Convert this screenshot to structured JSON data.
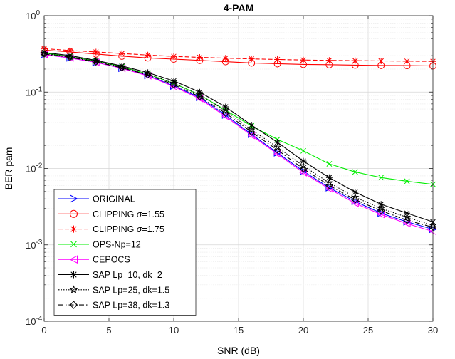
{
  "chart_data": {
    "type": "line",
    "title": "4-PAM",
    "xlabel": "SNR (dB)",
    "ylabel": "BER pam",
    "xlim": [
      0,
      30
    ],
    "ylim": [
      0.0001,
      1
    ],
    "yscale": "log",
    "grid": true,
    "legend_position": "bottom-left",
    "x_ticks": [
      "0",
      "5",
      "10",
      "15",
      "20",
      "25",
      "30"
    ],
    "y_ticks": [
      {
        "base": "10",
        "exp": "0"
      },
      {
        "base": "10",
        "exp": "-1"
      },
      {
        "base": "10",
        "exp": "-2"
      },
      {
        "base": "10",
        "exp": "-3"
      },
      {
        "base": "10",
        "exp": "-4"
      }
    ],
    "x": [
      0,
      2,
      4,
      6,
      8,
      10,
      12,
      14,
      16,
      18,
      20,
      22,
      24,
      26,
      28,
      30
    ],
    "series": [
      {
        "name": "ORIGINAL",
        "label_parts": [
          "ORIGINAL"
        ],
        "color": "#0000ff",
        "dash": "solid",
        "marker": "triangle-right",
        "values": [
          0.31,
          0.28,
          0.245,
          0.205,
          0.165,
          0.12,
          0.085,
          0.05,
          0.028,
          0.016,
          0.0092,
          0.0056,
          0.0037,
          0.0026,
          0.002,
          0.0016
        ]
      },
      {
        "name": "CLIPPING σ=1.55",
        "label_parts": [
          "CLIPPING ",
          "σ",
          "=1.55"
        ],
        "color": "#ff0000",
        "dash": "solid",
        "marker": "circle",
        "values": [
          0.355,
          0.335,
          0.315,
          0.295,
          0.28,
          0.27,
          0.26,
          0.25,
          0.24,
          0.235,
          0.23,
          0.228,
          0.225,
          0.223,
          0.222,
          0.22
        ]
      },
      {
        "name": "CLIPPING σ=1.75",
        "label_parts": [
          "CLIPPING ",
          "σ",
          "=1.75"
        ],
        "color": "#ff0000",
        "dash": "dashed",
        "marker": "asterisk",
        "values": [
          0.37,
          0.35,
          0.335,
          0.32,
          0.305,
          0.293,
          0.285,
          0.278,
          0.272,
          0.267,
          0.263,
          0.26,
          0.258,
          0.256,
          0.254,
          0.252
        ]
      },
      {
        "name": "OPS-Np=12",
        "label_parts": [
          "OPS-Np=12"
        ],
        "color": "#00ee00",
        "dash": "solid",
        "marker": "x",
        "values": [
          0.325,
          0.29,
          0.255,
          0.215,
          0.172,
          0.13,
          0.092,
          0.058,
          0.036,
          0.024,
          0.017,
          0.0115,
          0.009,
          0.0076,
          0.0068,
          0.0062
        ]
      },
      {
        "name": "CEPOCS",
        "label_parts": [
          "CEPOCS"
        ],
        "color": "#ff00ff",
        "dash": "solid",
        "marker": "triangle-left",
        "values": [
          0.31,
          0.28,
          0.245,
          0.205,
          0.163,
          0.118,
          0.082,
          0.048,
          0.027,
          0.0155,
          0.0088,
          0.0054,
          0.0035,
          0.0025,
          0.0019,
          0.0015
        ]
      },
      {
        "name": "SAP Lp=10, dk=2",
        "label_parts": [
          "SAP Lp=10, dk=2"
        ],
        "color": "#000000",
        "dash": "solid",
        "marker": "asterisk",
        "values": [
          0.33,
          0.3,
          0.26,
          0.22,
          0.18,
          0.14,
          0.1,
          0.064,
          0.037,
          0.022,
          0.0125,
          0.0076,
          0.0049,
          0.0034,
          0.0026,
          0.002
        ]
      },
      {
        "name": "SAP Lp=25, dk=1.5",
        "label_parts": [
          "SAP Lp=25, dk=1.5"
        ],
        "color": "#000000",
        "dash": "dotted",
        "marker": "star",
        "values": [
          0.32,
          0.29,
          0.253,
          0.213,
          0.173,
          0.13,
          0.092,
          0.057,
          0.032,
          0.019,
          0.0108,
          0.0065,
          0.0042,
          0.003,
          0.0023,
          0.0018
        ]
      },
      {
        "name": "SAP Lp=38, dk=1.3",
        "label_parts": [
          "SAP Lp=38, dk=1.3"
        ],
        "color": "#000000",
        "dash": "dashdot",
        "marker": "diamond",
        "values": [
          0.315,
          0.285,
          0.248,
          0.208,
          0.168,
          0.125,
          0.087,
          0.053,
          0.03,
          0.0175,
          0.0099,
          0.006,
          0.0039,
          0.0028,
          0.0021,
          0.0017
        ]
      }
    ]
  }
}
